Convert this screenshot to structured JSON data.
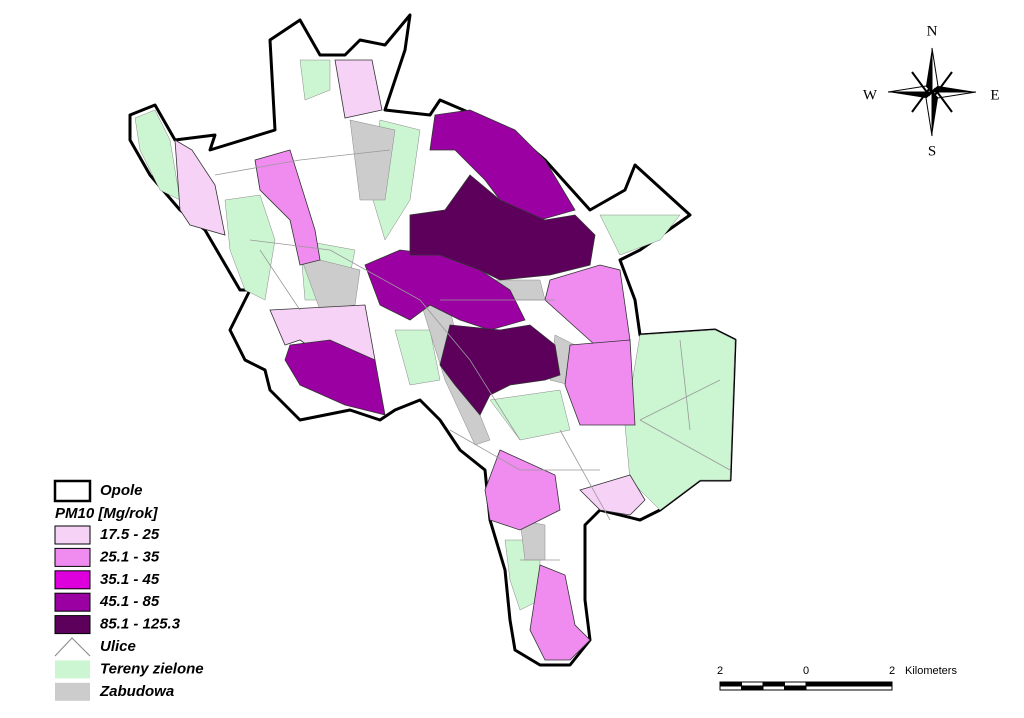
{
  "compass": {
    "north": "N",
    "south": "S",
    "west": "W",
    "east": "E"
  },
  "legend": {
    "boundary": "Opole",
    "title": "PM10 [Mg/rok]",
    "classes": [
      {
        "label": "17.5 - 25",
        "color": "#f7d2f7"
      },
      {
        "label": "25.1 - 35",
        "color": "#f08cf0"
      },
      {
        "label": "35.1 - 45",
        "color": "#dd00dd"
      },
      {
        "label": "45.1 - 85",
        "color": "#9b00a3"
      },
      {
        "label": "85.1 - 125.3",
        "color": "#5c005c"
      }
    ],
    "layers": [
      {
        "label": "Ulice"
      },
      {
        "label": "Tereny zielone",
        "color": "#ccf5d2"
      },
      {
        "label": "Zabudowa",
        "color": "#cccccc"
      }
    ]
  },
  "scale_bar": {
    "labels": [
      "2",
      "0",
      "2"
    ],
    "unit": "Kilometers"
  }
}
